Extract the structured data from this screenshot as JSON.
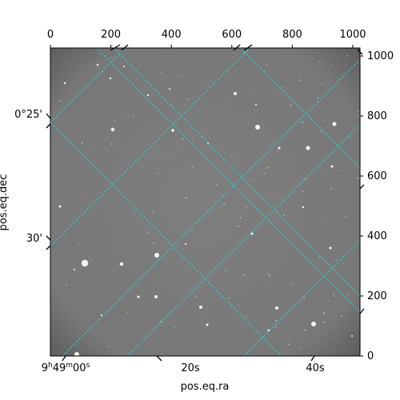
{
  "chart_data": {
    "type": "image",
    "xlabel": "pos.eq.ra",
    "ylabel": "pos.eq.dec",
    "pixel_axes": {
      "x_ticks": [
        "0",
        "200",
        "400",
        "600",
        "800",
        "1000"
      ],
      "y_ticks": [
        "0",
        "200",
        "400",
        "600",
        "800",
        "1000"
      ],
      "xlim": [
        0,
        1024
      ],
      "ylim": [
        0,
        1024
      ]
    },
    "world_ticks": {
      "ra": [
        {
          "label": "9h49m00s",
          "h": "9",
          "m": "49",
          "s": "00"
        },
        {
          "label": "20s"
        },
        {
          "label": "40s"
        }
      ],
      "dec": [
        {
          "label": "0°25'"
        },
        {
          "label": "30'"
        }
      ]
    },
    "grid": true,
    "colors": {
      "grid": "#26d0d0",
      "background": "#7b7b7b",
      "frame": "#000000"
    }
  }
}
